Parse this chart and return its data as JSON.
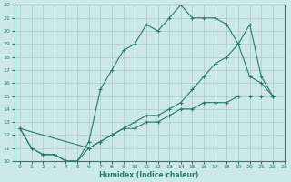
{
  "line1_x": [
    0,
    1,
    2,
    3,
    4,
    5,
    6,
    7,
    8,
    9,
    10,
    11,
    12,
    13,
    14,
    15,
    16,
    17,
    18,
    19,
    20,
    21,
    22
  ],
  "line1_y": [
    12.5,
    11.0,
    10.5,
    10.5,
    10.0,
    10.0,
    11.5,
    15.5,
    17.0,
    18.5,
    19.0,
    20.5,
    20.0,
    21.0,
    22.0,
    21.0,
    21.0,
    21.0,
    20.5,
    19.0,
    16.5,
    16.0,
    15.0
  ],
  "line2_x": [
    0,
    1,
    2,
    3,
    4,
    5,
    6,
    7,
    8,
    9,
    10,
    11,
    12,
    13,
    14,
    15,
    16,
    17,
    18,
    19,
    20,
    21,
    22
  ],
  "line2_y": [
    12.5,
    11.0,
    10.5,
    10.5,
    10.0,
    10.0,
    11.0,
    11.5,
    12.0,
    12.5,
    12.5,
    13.0,
    13.0,
    13.5,
    14.0,
    14.0,
    14.5,
    14.5,
    14.5,
    15.0,
    15.0,
    15.0,
    15.0
  ],
  "line3_x": [
    0,
    6,
    7,
    8,
    9,
    10,
    11,
    12,
    13,
    14,
    15,
    16,
    17,
    18,
    19,
    20,
    21,
    22
  ],
  "line3_y": [
    12.5,
    11.0,
    11.5,
    12.0,
    12.5,
    13.0,
    13.5,
    13.5,
    14.0,
    14.5,
    15.5,
    16.5,
    17.5,
    18.0,
    19.0,
    20.5,
    16.5,
    15.0
  ],
  "color": "#2a7a6a",
  "bg_color": "#cce8e8",
  "grid_color": "#aacccc",
  "xlabel": "Humidex (Indice chaleur)",
  "xlim": [
    -0.5,
    23
  ],
  "ylim": [
    10,
    22
  ],
  "yticks": [
    10,
    11,
    12,
    13,
    14,
    15,
    16,
    17,
    18,
    19,
    20,
    21,
    22
  ],
  "xticks": [
    0,
    1,
    2,
    3,
    4,
    5,
    6,
    7,
    8,
    9,
    10,
    11,
    12,
    13,
    14,
    15,
    16,
    17,
    18,
    19,
    20,
    21,
    22,
    23
  ]
}
